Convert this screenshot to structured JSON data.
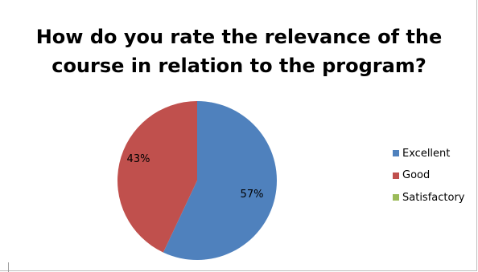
{
  "chart_data": {
    "type": "pie",
    "title_lines": [
      "How do you rate the relevance of the",
      "course in relation to the program?"
    ],
    "slices": [
      {
        "label": "Excellent",
        "value": 57,
        "display": "57%",
        "color": "#4F81BD"
      },
      {
        "label": "Good",
        "value": 43,
        "display": "43%",
        "color": "#C0504D"
      },
      {
        "label": "Satisfactory",
        "value": 0,
        "display": "",
        "color": "#9BBB59"
      }
    ],
    "legend_position": "right"
  }
}
